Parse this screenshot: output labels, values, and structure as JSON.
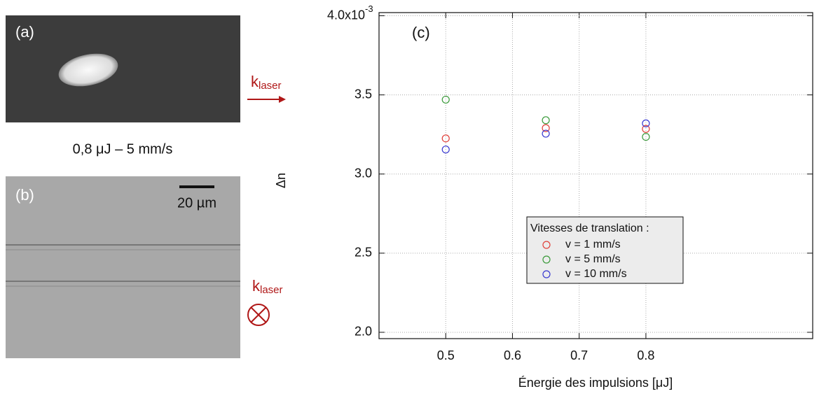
{
  "panels": {
    "a": {
      "label": "(a)",
      "k": "k",
      "k_sub": "laser"
    },
    "caption": "0,8 μJ – 5 mm/s",
    "b": {
      "label": "(b)",
      "scale": "20 µm",
      "k": "k",
      "k_sub": "laser"
    }
  },
  "chart_data": {
    "type": "scatter",
    "panel_label": "(c)",
    "x_label": "Énergie des impulsions [μJ]",
    "y_label": "Δn",
    "x": [
      0.5,
      0.65,
      0.8
    ],
    "series": [
      {
        "name": "v = 1 mm/s",
        "color": "#e0403a",
        "values": [
          0.003225,
          0.00329,
          0.003285
        ]
      },
      {
        "name": "v = 5 mm/s",
        "color": "#3a9a3a",
        "values": [
          0.00347,
          0.00334,
          0.003235
        ]
      },
      {
        "name": "v = 10 mm/s",
        "color": "#3a3ad0",
        "values": [
          0.003155,
          0.003255,
          0.00332
        ]
      }
    ],
    "legend_title": "Vitesses de translation :",
    "xlim": [
      0.4,
      1.05
    ],
    "ylim": [
      0.00196,
      0.00402
    ],
    "xticks": [
      0.5,
      0.6,
      0.7,
      0.8
    ],
    "yticks": [
      {
        "value": 0.002,
        "label": "2.0"
      },
      {
        "value": 0.0025,
        "label": "2.5"
      },
      {
        "value": 0.003,
        "label": "3.0"
      },
      {
        "value": 0.0035,
        "label": "3.5"
      },
      {
        "value": 0.004,
        "label": "4.0x10"
      }
    ],
    "y_exponent": "-3",
    "grid": true
  }
}
